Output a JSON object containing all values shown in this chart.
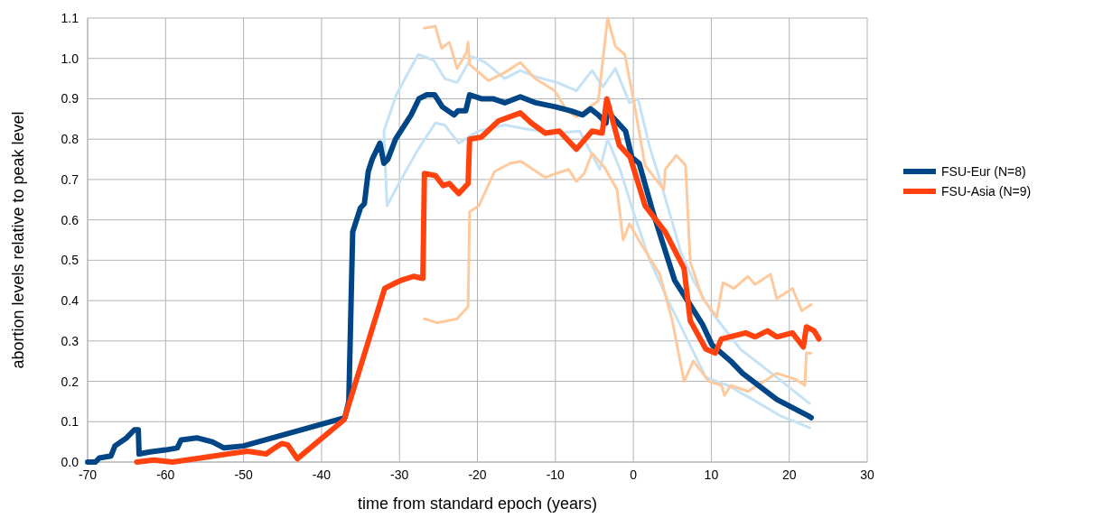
{
  "chart_data": {
    "type": "line",
    "xlabel": "time from standard epoch (years)",
    "ylabel": "abortion levels relative to peak level",
    "xlim": [
      -70,
      30
    ],
    "xticks": [
      -70,
      -60,
      -50,
      -40,
      -30,
      -20,
      -10,
      0,
      10,
      20,
      30
    ],
    "ylim": [
      0,
      1.1
    ],
    "yticks": [
      {
        "value": 0,
        "label": "0.0"
      },
      0.1,
      0.2,
      0.3,
      0.4,
      0.5,
      0.6,
      0.7,
      0.8,
      0.9,
      {
        "value": 1,
        "label": "1.0"
      },
      1.1
    ],
    "grid": true,
    "legend": "right",
    "marker": "none",
    "line_style": "solid",
    "series": [
      {
        "color": "#c6e2f5",
        "x": [
          22.6,
          18.4,
          13.7,
          10.1,
          7.7,
          6.1,
          3.4,
          2.1,
          0.6,
          -0.5,
          -2.3,
          -3.9,
          -5.3,
          -7.3,
          -9.7,
          -12.6,
          -14.5,
          -16.5,
          -19,
          -20.7,
          -22.6,
          -24.2,
          -25.6,
          -27.6,
          -30.4,
          -32,
          -31.6,
          -29.8,
          -27.6,
          -25.4,
          -24.2,
          -22.4,
          -19.9,
          -16.5,
          -13.7,
          -10.1,
          -6.9,
          -4.3,
          -3.3,
          -1.7,
          0,
          2.1,
          4.6,
          9.3,
          12.1,
          15.3,
          18.8,
          22.6
        ],
        "values": [
          0.145,
          0.21,
          0.28,
          0.37,
          0.45,
          0.52,
          0.7,
          0.78,
          0.9,
          0.89,
          0.975,
          0.93,
          0.97,
          0.92,
          0.94,
          0.955,
          0.97,
          0.95,
          0.99,
          1.005,
          0.94,
          0.95,
          0.995,
          1.01,
          0.91,
          0.82,
          0.635,
          0.7,
          0.775,
          0.84,
          0.835,
          0.79,
          0.82,
          0.835,
          0.825,
          0.815,
          0.82,
          0.725,
          0.8,
          0.725,
          0.62,
          0.5,
          0.395,
          0.21,
          0.19,
          0.155,
          0.115,
          0.085
        ]
      },
      {
        "color": "#ffc99e",
        "x": [
          -26.8,
          -25.4,
          -24.6,
          -23.6,
          -22.6,
          -21.4,
          -21.2,
          -21,
          -18.6,
          -16.5,
          -14.5,
          -12.6,
          -10.1,
          -8.5,
          -7.3,
          -4.5,
          -3.3,
          -2.3,
          -1.1,
          0,
          1.5,
          3.9,
          4.1,
          5.5,
          6.7,
          7.3,
          8.9,
          10.7,
          11.5,
          12.9,
          14.7,
          15.6,
          17.6,
          18.4,
          20.4,
          21.6,
          22.8
        ],
        "values": [
          1.075,
          1.08,
          1.025,
          1.04,
          0.975,
          1.015,
          1.04,
          0.985,
          0.945,
          0.965,
          0.99,
          0.95,
          0.92,
          0.87,
          0.855,
          0.895,
          1.1,
          1.03,
          1.01,
          0.9,
          0.735,
          0.675,
          0.725,
          0.76,
          0.735,
          0.495,
          0.405,
          0.36,
          0.445,
          0.43,
          0.46,
          0.44,
          0.465,
          0.405,
          0.43,
          0.375,
          0.39
        ]
      },
      {
        "color": "#ffc99e",
        "x": [
          -26.8,
          -25.2,
          -22.6,
          -21.2,
          -21,
          -19.8,
          -17.8,
          -15.8,
          -14.4,
          -11.3,
          -9.9,
          -8.3,
          -7.3,
          -6.3,
          -5.3,
          -3.7,
          -2.1,
          -1.3,
          -0.5,
          1,
          3.4,
          5,
          6.5,
          7.7,
          9.7,
          11.3,
          11.7,
          12.5,
          14.7,
          18.4,
          20.8,
          22,
          22.2,
          22.8
        ],
        "values": [
          0.355,
          0.345,
          0.355,
          0.385,
          0.62,
          0.635,
          0.72,
          0.74,
          0.745,
          0.705,
          0.715,
          0.725,
          0.695,
          0.715,
          0.765,
          0.73,
          0.675,
          0.55,
          0.59,
          0.54,
          0.465,
          0.35,
          0.2,
          0.25,
          0.2,
          0.19,
          0.165,
          0.19,
          0.175,
          0.22,
          0.205,
          0.19,
          0.27,
          0.27
        ]
      },
      {
        "name": "FSU-Eur (N=8)",
        "color": "#004586",
        "x": [
          -70,
          -69,
          -68.5,
          -67,
          -66.5,
          -65,
          -64,
          -63.5,
          -63.4,
          -62,
          -60,
          -58.5,
          -58,
          -56,
          -54,
          -53,
          -52.5,
          -50,
          -37,
          -36.5,
          -36,
          -35,
          -34.5,
          -34,
          -33.5,
          -32.5,
          -32,
          -31.5,
          -30.5,
          -28.5,
          -27.5,
          -26.5,
          -25.5,
          -24.5,
          -23,
          -22.5,
          -21.5,
          -21,
          -19.5,
          -18,
          -16.5,
          -14.5,
          -12.5,
          -10,
          -8,
          -6.5,
          -5.5,
          -4.5,
          -3.5,
          -3.4,
          -1,
          -0.2,
          0.75,
          2.5,
          5.3,
          8.9,
          10.1,
          12.5,
          14,
          18.4,
          22.4,
          22.8
        ],
        "values": [
          0,
          0,
          0.01,
          0.015,
          0.04,
          0.06,
          0.08,
          0.08,
          0.02,
          0.025,
          0.03,
          0.035,
          0.055,
          0.06,
          0.05,
          0.04,
          0.035,
          0.04,
          0.11,
          0.15,
          0.57,
          0.63,
          0.64,
          0.72,
          0.75,
          0.79,
          0.74,
          0.75,
          0.8,
          0.86,
          0.9,
          0.91,
          0.91,
          0.88,
          0.86,
          0.87,
          0.87,
          0.91,
          0.9,
          0.9,
          0.89,
          0.905,
          0.89,
          0.88,
          0.87,
          0.86,
          0.875,
          0.86,
          0.84,
          0.87,
          0.82,
          0.755,
          0.74,
          0.62,
          0.45,
          0.34,
          0.29,
          0.25,
          0.22,
          0.155,
          0.115,
          0.11
        ]
      },
      {
        "name": "FSU-Asia (N=9)",
        "color": "#ff420e",
        "x": [
          -63.7,
          -61.5,
          -59.1,
          -49.5,
          -47.1,
          -46,
          -45.1,
          -44.3,
          -43.1,
          -37.1,
          -31.9,
          -30.4,
          -29.8,
          -28.2,
          -27,
          -26.8,
          -25.4,
          -24.4,
          -23.6,
          -22.4,
          -21.2,
          -21,
          -19.5,
          -17.3,
          -14.5,
          -13.1,
          -11.3,
          -9.5,
          -7.3,
          -5.3,
          -4,
          -3.4,
          -1.8,
          -0.4,
          1.5,
          4.1,
          6.5,
          7.3,
          9.3,
          10.5,
          11.3,
          14.4,
          15.6,
          17.2,
          18.4,
          20.4,
          21.8,
          22.2,
          23.2,
          23.8
        ],
        "values": [
          0,
          0.005,
          0,
          0.027,
          0.02,
          0.035,
          0.046,
          0.042,
          0.008,
          0.105,
          0.43,
          0.445,
          0.45,
          0.46,
          0.455,
          0.715,
          0.71,
          0.685,
          0.69,
          0.665,
          0.69,
          0.8,
          0.805,
          0.845,
          0.865,
          0.84,
          0.815,
          0.82,
          0.775,
          0.82,
          0.815,
          0.9,
          0.785,
          0.755,
          0.635,
          0.57,
          0.48,
          0.35,
          0.28,
          0.27,
          0.305,
          0.32,
          0.31,
          0.325,
          0.31,
          0.32,
          0.285,
          0.335,
          0.325,
          0.305
        ]
      }
    ]
  }
}
